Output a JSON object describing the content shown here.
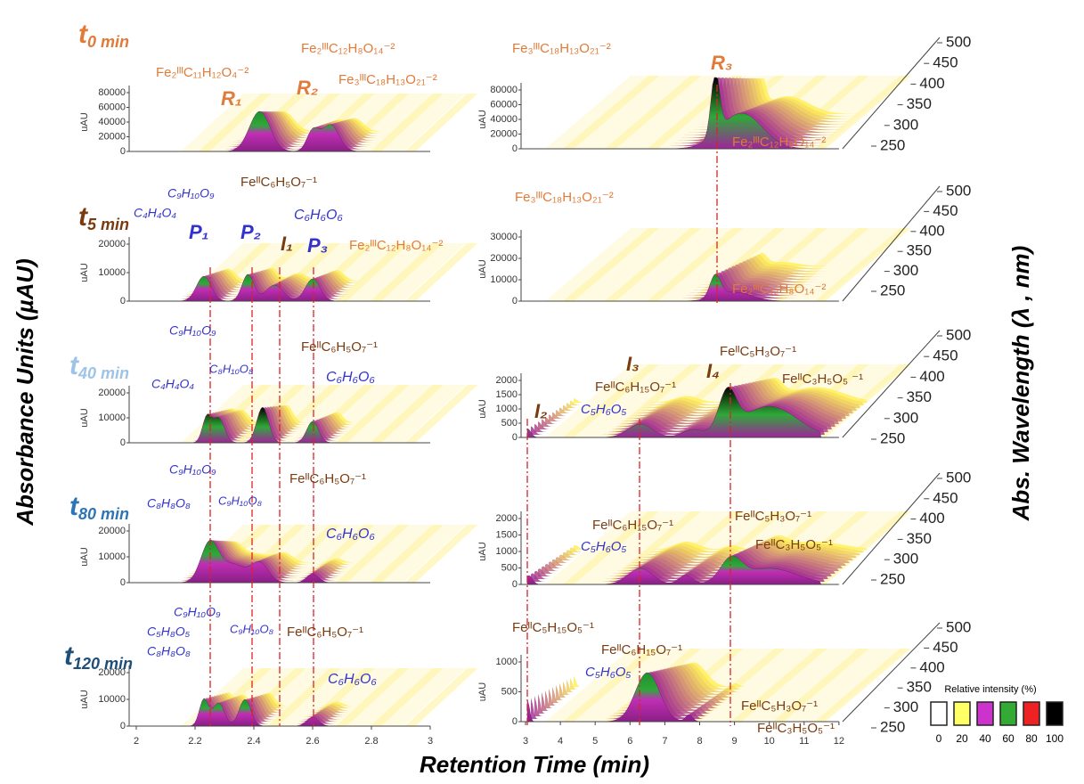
{
  "y_axis_title": "Absorbance Units (µAU)",
  "x_axis_title": "Retention Time (min)",
  "right_axis_title": "Abs. Wavelength  (λ , nm)",
  "y_unit": "uAU",
  "left_x_ticks": [
    2,
    2.2,
    2.4,
    2.6,
    2.8,
    3
  ],
  "right_x_ticks": [
    3,
    4,
    5,
    6,
    7,
    8,
    9,
    10,
    11,
    12
  ],
  "wavelength_ticks": [
    500,
    450,
    400,
    350,
    300,
    250
  ],
  "legend": {
    "title": "Relative intensity (%)",
    "items": [
      {
        "label": 0,
        "color": "#ffffff"
      },
      {
        "label": 20,
        "color": "#ffff66"
      },
      {
        "label": 40,
        "color": "#cc33cc"
      },
      {
        "label": 60,
        "color": "#33aa33"
      },
      {
        "label": 80,
        "color": "#ee2222"
      },
      {
        "label": 100,
        "color": "#000000"
      }
    ]
  },
  "rows": [
    {
      "time": {
        "main": "t",
        "sub": "0 min"
      },
      "left": {
        "yticks": [
          0,
          20000,
          40000,
          60000,
          80000
        ],
        "annotations": [
          "Fe₂ᴵᴵᴵC₁₁H₁₂O₄⁻²",
          "R₁",
          "R₂",
          "Fe₂ᴵᴵᴵC₁₂H₈O₁₄⁻²",
          "Fe₃ᴵᴵᴵC₁₈H₁₃O₂₁⁻²"
        ]
      },
      "right": {
        "yticks": [
          0,
          20000,
          40000,
          60000,
          80000
        ],
        "annotations": [
          "Fe₃ᴵᴵᴵC₁₈H₁₃O₂₁⁻²",
          "R₃",
          "Fe₂ᴵᴵᴵC₁₂H₈O₁₄⁻²"
        ]
      }
    },
    {
      "time": {
        "main": "t",
        "sub": "5 min"
      },
      "left": {
        "yticks": [
          0,
          10000,
          20000
        ],
        "annotations": [
          "C₉H₁₀O₉",
          "C₄H₄O₄",
          "P₁",
          "P₂",
          "FeᴵᴵC₆H₅O₇⁻¹",
          "I₁",
          "C₆H₆O₆",
          "P₃",
          "Fe₂ᴵᴵᴵC₁₂H₈O₁₄⁻²"
        ]
      },
      "right": {
        "yticks": [
          0,
          10000,
          20000,
          30000
        ],
        "annotations": [
          "Fe₃ᴵᴵᴵC₁₈H₁₃O₂₁⁻²",
          "Fe₂ᴵᴵᴵC₁₂H₈O₁₄⁻²"
        ]
      }
    },
    {
      "time": {
        "main": "t",
        "sub": "40 min"
      },
      "left": {
        "yticks": [
          0,
          10000,
          20000
        ],
        "annotations": [
          "C₉H₁₀O₉",
          "C₈H₁₀O₈",
          "C₄H₄O₄",
          "FeᴵᴵC₆H₅O₇⁻¹",
          "C₆H₆O₆"
        ]
      },
      "right": {
        "yticks": [
          0,
          500,
          1000,
          1500,
          2000
        ],
        "annotations": [
          "I₂",
          "I₃",
          "FeᴵᴵC₆H₁₅O₇⁻¹",
          "C₅H₆O₅",
          "I₄",
          "FeᴵᴵC₅H₃O₇⁻¹",
          "FeᴵᴵC₃H₅O₅ ⁻¹"
        ]
      }
    },
    {
      "time": {
        "main": "t",
        "sub": "80 min"
      },
      "left": {
        "yticks": [
          0,
          10000,
          20000
        ],
        "annotations": [
          "C₉H₁₀O₉",
          "C₈H₈O₈",
          "C₉H₁₀O₈",
          "FeᴵᴵC₆H₅O₇⁻¹",
          "C₆H₆O₆"
        ]
      },
      "right": {
        "yticks": [
          0,
          500,
          1000,
          1500,
          2000
        ],
        "annotations": [
          "FeᴵᴵC₆H₁₅O₇⁻¹",
          "C₅H₆O₅",
          "FeᴵᴵC₅H₃O₇⁻¹",
          "FeᴵᴵC₃H₅O₅⁻¹"
        ]
      }
    },
    {
      "time": {
        "main": "t",
        "sub": "120 min"
      },
      "left": {
        "yticks": [
          0,
          10000,
          20000
        ],
        "annotations": [
          "C₉H₁₀O₉",
          "C₅H₈O₅",
          "C₉H₁₀O₈",
          "C₈H₈O₈",
          "FeᴵᴵC₆H₅O₇⁻¹",
          "C₆H₆O₆"
        ]
      },
      "right": {
        "yticks": [
          0,
          500,
          1000
        ],
        "annotations": [
          "FeᴵᴵC₅H₁₅O₅⁻¹",
          "FeᴵᴵC₆H₁₅O₇⁻¹",
          "C₅H₆O₅",
          "FeᴵᴵC₅H₃O₇⁻¹",
          "FeᴵᴵC₃H₅O₅⁻¹"
        ]
      }
    }
  ]
}
